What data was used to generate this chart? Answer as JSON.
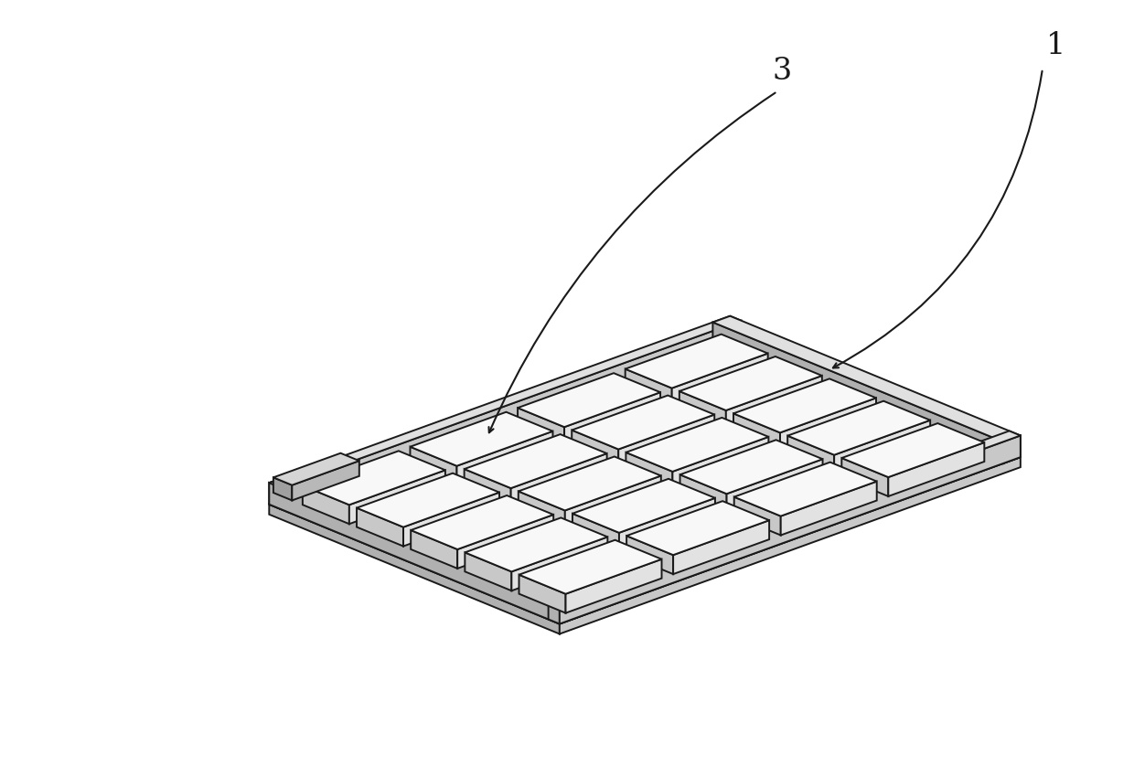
{
  "background_color": "#ffffff",
  "line_color": "#1a1a1a",
  "line_width": 1.4,
  "fill_top": "#f8f8f8",
  "fill_left": "#c8c8c8",
  "fill_front": "#e2e2e2",
  "tray_top": "#e0e0e0",
  "tray_side": "#b0b0b0",
  "tray_front": "#c8c8c8",
  "label_1": "1",
  "label_3": "3",
  "label_fontsize": 24,
  "figsize": [
    12.4,
    8.38
  ],
  "dpi": 100,
  "n_cols": 4,
  "n_rows": 5
}
